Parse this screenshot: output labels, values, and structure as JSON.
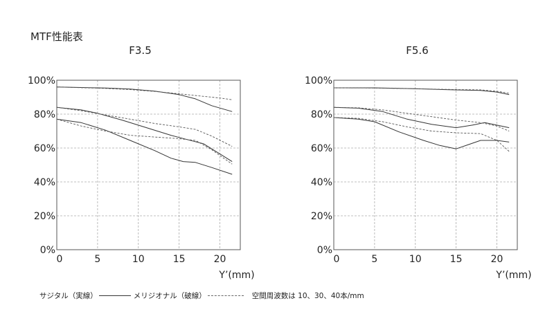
{
  "page_title": "MTF性能表",
  "legend": {
    "sagittal": "サジタル（実線）",
    "meridional": "メリジオナル（破線）",
    "frequencies": "空間周波数は 10、30、40本/mm"
  },
  "colors": {
    "line": "#333333",
    "dashed": "#555555",
    "grid": "#aaaaaa",
    "frame": "#555555"
  },
  "chart_data": [
    {
      "type": "line",
      "title": "F3.5",
      "xlabel": "Y’(mm)",
      "ylabel": "",
      "xlim": [
        0,
        22.5
      ],
      "ylim": [
        0,
        100
      ],
      "x_ticks": [
        0,
        5,
        10,
        15,
        20
      ],
      "y_ticks": [
        0,
        20,
        40,
        60,
        80,
        100
      ],
      "y_tick_labels": [
        "0%",
        "20%",
        "40%",
        "60%",
        "80%",
        "100%"
      ],
      "grid": true,
      "series": [
        {
          "style": "solid",
          "x": [
            0,
            3,
            6,
            9,
            12,
            15,
            17,
            19,
            21.5
          ],
          "y": [
            96,
            95.7,
            95.4,
            94.8,
            93.6,
            91.5,
            89,
            85,
            81.5
          ]
        },
        {
          "style": "dashed",
          "x": [
            0,
            3,
            6,
            9,
            12,
            15,
            18,
            20,
            21.5
          ],
          "y": [
            96,
            95.6,
            95.2,
            94.5,
            93.4,
            92,
            90.5,
            89.5,
            88.5
          ]
        },
        {
          "style": "solid",
          "x": [
            0,
            3,
            5,
            8,
            11,
            14,
            16,
            18,
            20,
            21.5
          ],
          "y": [
            84,
            82.5,
            80.5,
            76.5,
            72,
            67.5,
            65,
            62.5,
            56.5,
            52
          ]
        },
        {
          "style": "dashed",
          "x": [
            0,
            3,
            6,
            9,
            12,
            15,
            17,
            19,
            21.5
          ],
          "y": [
            84,
            82,
            79.5,
            77,
            74.5,
            72.5,
            71,
            67,
            61
          ]
        },
        {
          "style": "solid",
          "x": [
            0,
            3,
            6,
            9,
            12,
            14,
            15.5,
            17,
            19,
            21.5
          ],
          "y": [
            77,
            75,
            70.5,
            64.5,
            58.5,
            54,
            52,
            51.5,
            48.5,
            44.5
          ]
        },
        {
          "style": "dashed",
          "x": [
            0,
            3,
            6,
            9,
            12,
            15,
            17,
            19,
            21.5
          ],
          "y": [
            77,
            73,
            70,
            67.5,
            66.5,
            65.5,
            64.5,
            59,
            50.5
          ]
        }
      ]
    },
    {
      "type": "line",
      "title": "F5.6",
      "xlabel": "Y’(mm)",
      "ylabel": "",
      "xlim": [
        0,
        22.5
      ],
      "ylim": [
        0,
        100
      ],
      "x_ticks": [
        0,
        5,
        10,
        15,
        20
      ],
      "y_ticks": [
        0,
        20,
        40,
        60,
        80,
        100
      ],
      "y_tick_labels": [
        "0%",
        "20%",
        "40%",
        "60%",
        "80%",
        "100%"
      ],
      "grid": true,
      "series": [
        {
          "style": "solid",
          "x": [
            0,
            5,
            10,
            15,
            18,
            20,
            21.5
          ],
          "y": [
            95.5,
            95.5,
            95,
            94.3,
            94,
            93,
            91.5
          ]
        },
        {
          "style": "dashed",
          "x": [
            0,
            5,
            10,
            15,
            18,
            20,
            21.5
          ],
          "y": [
            95.5,
            95.4,
            95,
            94.5,
            94.3,
            93.5,
            92.3
          ]
        },
        {
          "style": "solid",
          "x": [
            0,
            3,
            6,
            9,
            12,
            15,
            17,
            18.5,
            20,
            21.5
          ],
          "y": [
            84,
            83.5,
            81.5,
            77,
            74,
            72,
            73.5,
            75,
            73.5,
            72
          ]
        },
        {
          "style": "dashed",
          "x": [
            0,
            3,
            6,
            9,
            12,
            15,
            18,
            20,
            21.5
          ],
          "y": [
            84,
            83.7,
            82.5,
            80.5,
            78.5,
            76.5,
            75,
            73,
            70
          ]
        },
        {
          "style": "solid",
          "x": [
            0,
            3,
            5,
            8,
            11,
            13,
            15,
            16.5,
            18,
            20,
            21.5
          ],
          "y": [
            78,
            77,
            75.5,
            69.5,
            64.5,
            61.5,
            59.5,
            62,
            64.5,
            64.5,
            63.5
          ]
        },
        {
          "style": "dashed",
          "x": [
            0,
            3,
            6,
            9,
            12,
            15,
            18,
            20,
            21.5
          ],
          "y": [
            78,
            77.5,
            75.5,
            72.5,
            70,
            69,
            68.5,
            64.5,
            58
          ]
        }
      ]
    }
  ]
}
